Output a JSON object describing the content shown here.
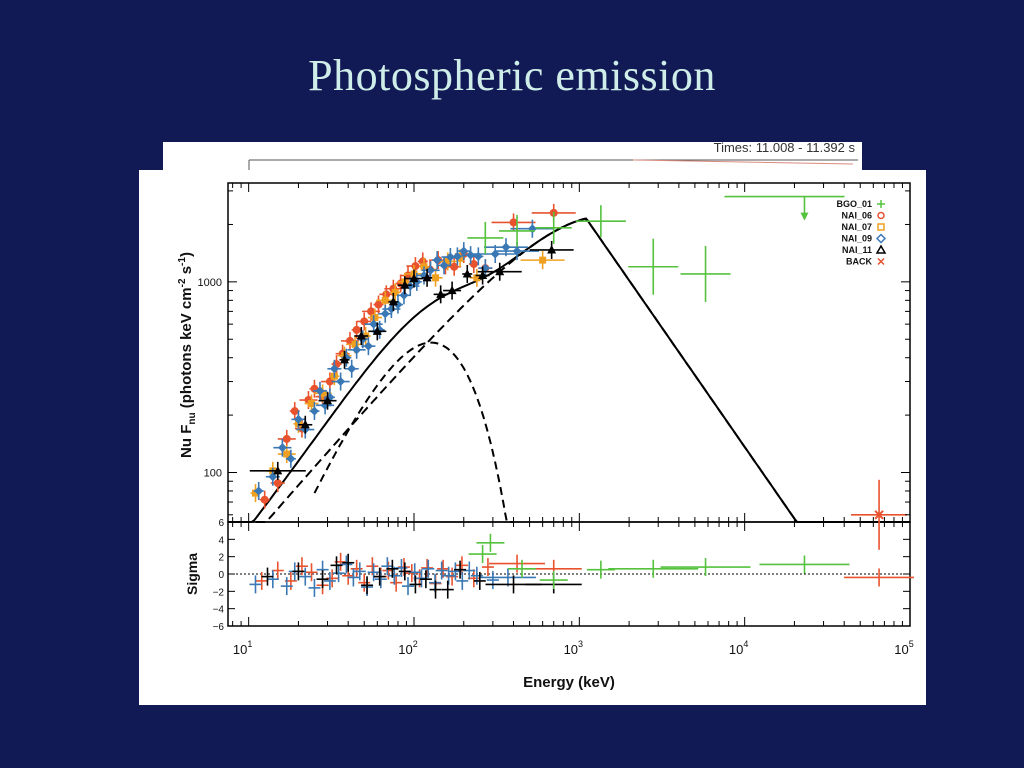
{
  "slide": {
    "title": "Photospheric emission",
    "times_label": "Times: 11.008 - 11.392 s"
  },
  "chart_data": [
    {
      "id": "spectrum",
      "type": "scatter",
      "xscale": "log",
      "yscale": "log",
      "xlim": [
        7.5,
        100000
      ],
      "ylim": [
        55,
        3300
      ],
      "ylabel": "Nu F_nu (photons keV cm^-2 s^-1)",
      "yticks": [
        100,
        1000
      ],
      "ytick_labels": [
        "100",
        "1000"
      ],
      "legend_position": "top-right",
      "legend": [
        {
          "name": "BGO_01",
          "marker": "+",
          "color": "#55c23d"
        },
        {
          "name": "NAI_06",
          "marker": "o",
          "color": "#e8532e"
        },
        {
          "name": "NAI_07",
          "marker": "square",
          "color": "#f0a020"
        },
        {
          "name": "NAI_09",
          "marker": "diamond",
          "color": "#3a78b5"
        },
        {
          "name": "NAI_11",
          "marker": "triangle",
          "color": "#000000"
        },
        {
          "name": "BACK",
          "marker": "x",
          "color": "#e8532e"
        }
      ],
      "series": [
        {
          "name": "NAI_06",
          "color": "#e8532e",
          "points": [
            [
              12.5,
              72
            ],
            [
              15,
              88
            ],
            [
              17,
              150
            ],
            [
              19,
              210
            ],
            [
              21,
              170
            ],
            [
              23,
              240
            ],
            [
              25,
              275
            ],
            [
              28,
              250
            ],
            [
              31,
              300
            ],
            [
              34,
              370
            ],
            [
              37,
              420
            ],
            [
              41,
              490
            ],
            [
              45,
              560
            ],
            [
              50,
              620
            ],
            [
              55,
              700
            ],
            [
              61,
              760
            ],
            [
              68,
              860
            ],
            [
              75,
              920
            ],
            [
              83,
              980
            ],
            [
              92,
              1080
            ],
            [
              102,
              1210
            ],
            [
              113,
              1280
            ],
            [
              125,
              1160
            ],
            [
              140,
              1300
            ],
            [
              155,
              1220
            ],
            [
              175,
              1200
            ],
            [
              200,
              1400
            ],
            [
              230,
              1240
            ],
            [
              270,
              1180
            ],
            [
              400,
              2050
            ],
            [
              700,
              2300
            ]
          ]
        },
        {
          "name": "NAI_07",
          "color": "#f0a020",
          "points": [
            [
              11,
              78
            ],
            [
              14,
              102
            ],
            [
              17,
              125
            ],
            [
              20,
              180
            ],
            [
              24,
              230
            ],
            [
              28,
              260
            ],
            [
              33,
              320
            ],
            [
              38,
              410
            ],
            [
              44,
              470
            ],
            [
              51,
              520
            ],
            [
              58,
              650
            ],
            [
              67,
              800
            ],
            [
              77,
              880
            ],
            [
              88,
              1000
            ],
            [
              100,
              1100
            ],
            [
              115,
              1200
            ],
            [
              135,
              1050
            ],
            [
              160,
              1280
            ],
            [
              190,
              1330
            ],
            [
              240,
              1050
            ],
            [
              600,
              1300
            ]
          ]
        },
        {
          "name": "NAI_09",
          "color": "#3a78b5",
          "points": [
            [
              11.5,
              80
            ],
            [
              14,
              95
            ],
            [
              16,
              135
            ],
            [
              18,
              118
            ],
            [
              20,
              190
            ],
            [
              22,
              168
            ],
            [
              25,
              210
            ],
            [
              27,
              268
            ],
            [
              29,
              225
            ],
            [
              31,
              248
            ],
            [
              33,
              350
            ],
            [
              36,
              300
            ],
            [
              39,
              400
            ],
            [
              42,
              350
            ],
            [
              45,
              440
            ],
            [
              49,
              500
            ],
            [
              53,
              460
            ],
            [
              57,
              600
            ],
            [
              62,
              560
            ],
            [
              67,
              680
            ],
            [
              73,
              720
            ],
            [
              80,
              760
            ],
            [
              87,
              850
            ],
            [
              95,
              950
            ],
            [
              104,
              1000
            ],
            [
              115,
              1080
            ],
            [
              126,
              1150
            ],
            [
              138,
              1300
            ],
            [
              152,
              1220
            ],
            [
              166,
              1350
            ],
            [
              183,
              1360
            ],
            [
              200,
              1450
            ],
            [
              220,
              1380
            ],
            [
              245,
              1360
            ],
            [
              270,
              1180
            ],
            [
              310,
              1400
            ],
            [
              360,
              1520
            ],
            [
              420,
              1450
            ],
            [
              520,
              1900
            ]
          ]
        },
        {
          "name": "NAI_11",
          "color": "#000000",
          "points": [
            [
              15,
              102
            ],
            [
              22,
              178
            ],
            [
              30,
              238
            ],
            [
              38,
              390
            ],
            [
              48,
              520
            ],
            [
              60,
              550
            ],
            [
              75,
              785
            ],
            [
              88,
              960
            ],
            [
              100,
              1040
            ],
            [
              120,
              1050
            ],
            [
              145,
              860
            ],
            [
              170,
              900
            ],
            [
              210,
              1100
            ],
            [
              260,
              1080
            ],
            [
              330,
              1130
            ],
            [
              680,
              1470
            ]
          ]
        },
        {
          "name": "BGO_01",
          "color": "#55c23d",
          "points": [
            [
              270,
              1700
            ],
            [
              420,
              1850
            ],
            [
              700,
              1920
            ],
            [
              1350,
              2080
            ],
            [
              2800,
              1200
            ],
            [
              5800,
              1100
            ]
          ],
          "upper_limit": [
            23000,
            2800
          ]
        },
        {
          "name": "BACK",
          "color": "#e8532e",
          "points": [
            [
              65000,
              60
            ]
          ]
        }
      ]
    },
    {
      "id": "residuals",
      "type": "scatter",
      "xscale": "log",
      "xlim": [
        7.5,
        100000
      ],
      "ylim": [
        -6,
        6
      ],
      "xlabel": "Energy (keV)",
      "ylabel": "Sigma",
      "yticks": [
        -6,
        -4,
        -2,
        0,
        2,
        4,
        6
      ],
      "ytick_labels": [
        "−6",
        "−4",
        "−2",
        "0",
        "2",
        "4",
        "6"
      ],
      "xticks": [
        10,
        100,
        1000,
        10000,
        100000
      ],
      "xtick_bases": [
        "10",
        "10",
        "10",
        "10",
        "10"
      ],
      "xtick_exps": [
        "1",
        "2",
        "3",
        "4",
        "5"
      ],
      "series": [
        {
          "name": "NAI_06",
          "color": "#e8532e",
          "points": [
            [
              12,
              -0.8
            ],
            [
              15,
              0.4
            ],
            [
              18,
              -0.8
            ],
            [
              21,
              0.9
            ],
            [
              24,
              0.2
            ],
            [
              28,
              -1.3
            ],
            [
              32,
              -0.5
            ],
            [
              36,
              1.4
            ],
            [
              40,
              -0.2
            ],
            [
              45,
              0.6
            ],
            [
              50,
              -1.0
            ],
            [
              56,
              0.9
            ],
            [
              63,
              -0.3
            ],
            [
              70,
              0.4
            ],
            [
              78,
              -1.0
            ],
            [
              87,
              0.8
            ],
            [
              97,
              0.1
            ],
            [
              108,
              -0.5
            ],
            [
              120,
              0.7
            ],
            [
              135,
              -1.1
            ],
            [
              150,
              0.6
            ],
            [
              170,
              -0.3
            ],
            [
              195,
              1.0
            ],
            [
              230,
              -0.5
            ],
            [
              280,
              0.8
            ],
            [
              420,
              1.2
            ],
            [
              700,
              0.6
            ]
          ]
        },
        {
          "name": "NAI_09",
          "color": "#3a78b5",
          "points": [
            [
              11,
              -1.2
            ],
            [
              14,
              -0.6
            ],
            [
              17,
              -1.4
            ],
            [
              19,
              0.3
            ],
            [
              22,
              -0.3
            ],
            [
              25,
              -1.6
            ],
            [
              28,
              0.5
            ],
            [
              31,
              -0.8
            ],
            [
              35,
              0.1
            ],
            [
              39,
              1.1
            ],
            [
              43,
              -0.4
            ],
            [
              47,
              0.3
            ],
            [
              52,
              -1.5
            ],
            [
              57,
              0.2
            ],
            [
              63,
              -0.6
            ],
            [
              69,
              0.9
            ],
            [
              76,
              -0.2
            ],
            [
              84,
              0.7
            ],
            [
              92,
              -1.4
            ],
            [
              101,
              0.2
            ],
            [
              111,
              -0.5
            ],
            [
              122,
              0.6
            ],
            [
              134,
              -1.0
            ],
            [
              147,
              0.4
            ],
            [
              162,
              -0.2
            ],
            [
              178,
              0.3
            ],
            [
              196,
              -0.8
            ],
            [
              216,
              0.4
            ],
            [
              240,
              -0.2
            ],
            [
              300,
              -0.7
            ],
            [
              370,
              -0.4
            ]
          ]
        },
        {
          "name": "NAI_11",
          "color": "#000000",
          "points": [
            [
              13,
              -0.3
            ],
            [
              20,
              0.3
            ],
            [
              28,
              -0.6
            ],
            [
              34,
              1.0
            ],
            [
              40,
              1.3
            ],
            [
              52,
              -1.3
            ],
            [
              62,
              -0.3
            ],
            [
              74,
              0.6
            ],
            [
              88,
              0.3
            ],
            [
              102,
              -1.2
            ],
            [
              118,
              -0.6
            ],
            [
              135,
              -1.8
            ],
            [
              160,
              -1.8
            ],
            [
              190,
              0.5
            ],
            [
              250,
              -0.8
            ],
            [
              400,
              -1.2
            ],
            [
              700,
              -1.2
            ]
          ]
        },
        {
          "name": "BGO_01",
          "color": "#55c23d",
          "points": [
            [
              260,
              2.3
            ],
            [
              290,
              3.6
            ],
            [
              450,
              0.6
            ],
            [
              700,
              -0.7
            ],
            [
              1350,
              0.5
            ],
            [
              2800,
              0.6
            ],
            [
              5800,
              0.8
            ],
            [
              23000,
              1.1
            ]
          ]
        },
        {
          "name": "BACK",
          "color": "#e8532e",
          "points": [
            [
              65000,
              -0.4
            ]
          ]
        }
      ]
    }
  ]
}
